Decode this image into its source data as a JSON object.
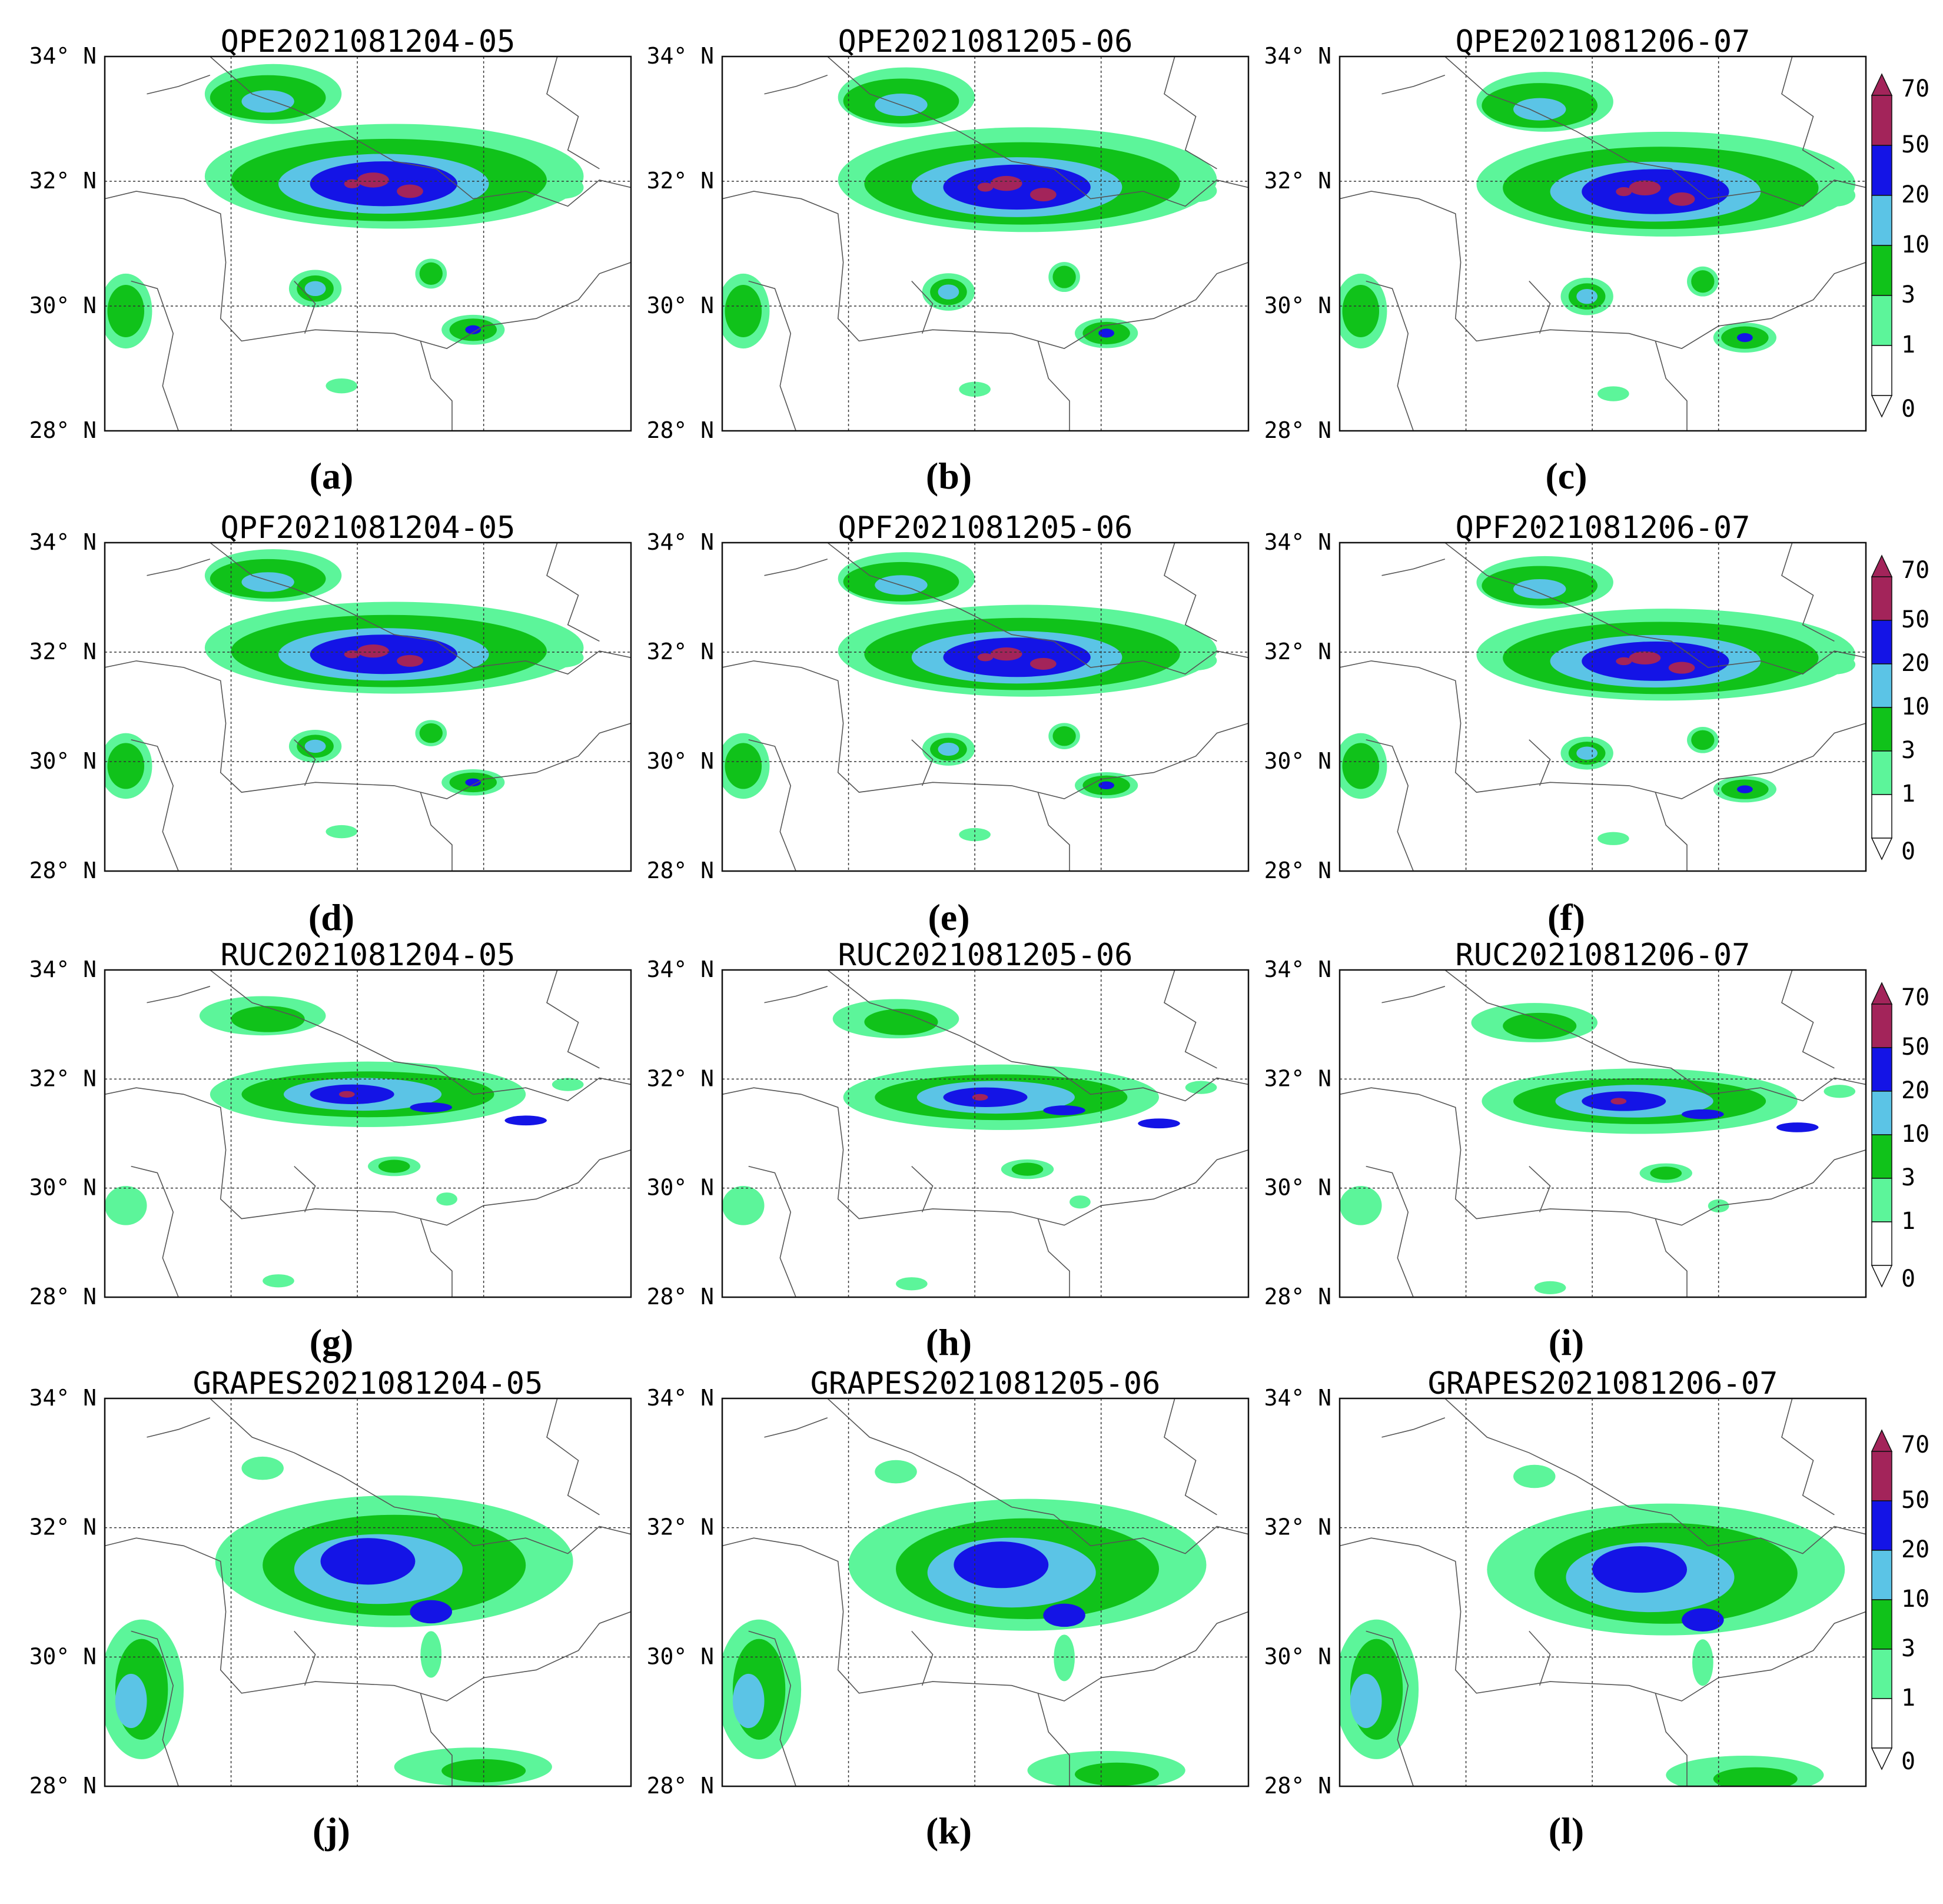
{
  "figure": {
    "colors": {
      "c0_1": "#ffffff",
      "c1_3": "#5cf59a",
      "c3_10": "#10c21a",
      "c10_20": "#5bc4e6",
      "c20_50": "#1414e6",
      "c50_70": "#2424c8",
      "c70": "#a3245a"
    },
    "lat_labels": [
      "34°  N",
      "32°  N",
      "30°  N",
      "28°  N"
    ],
    "colorbar_ticks": [
      "70",
      "50",
      "20",
      "10",
      "3",
      "1",
      "0"
    ],
    "rows": [
      {
        "panels": [
          {
            "title": "QPE2021081204-05",
            "label": "(a)"
          },
          {
            "title": "QPE2021081205-06",
            "label": "(b)"
          },
          {
            "title": "QPE2021081206-07",
            "label": "(c)"
          }
        ]
      },
      {
        "panels": [
          {
            "title": "QPF2021081204-05",
            "label": "(d)"
          },
          {
            "title": "QPF2021081205-06",
            "label": "(e)"
          },
          {
            "title": "QPF2021081206-07",
            "label": "(f)"
          }
        ]
      },
      {
        "panels": [
          {
            "title": "RUC2021081204-05",
            "label": "(g)"
          },
          {
            "title": "RUC2021081205-06",
            "label": "(h)"
          },
          {
            "title": "RUC2021081206-07",
            "label": "(i)"
          }
        ]
      },
      {
        "panels": [
          {
            "title": "GRAPES2021081204-05",
            "label": "(j)"
          },
          {
            "title": "GRAPES2021081205-06",
            "label": "(k)"
          },
          {
            "title": "GRAPES2021081206-07",
            "label": "(l)"
          }
        ]
      }
    ]
  }
}
